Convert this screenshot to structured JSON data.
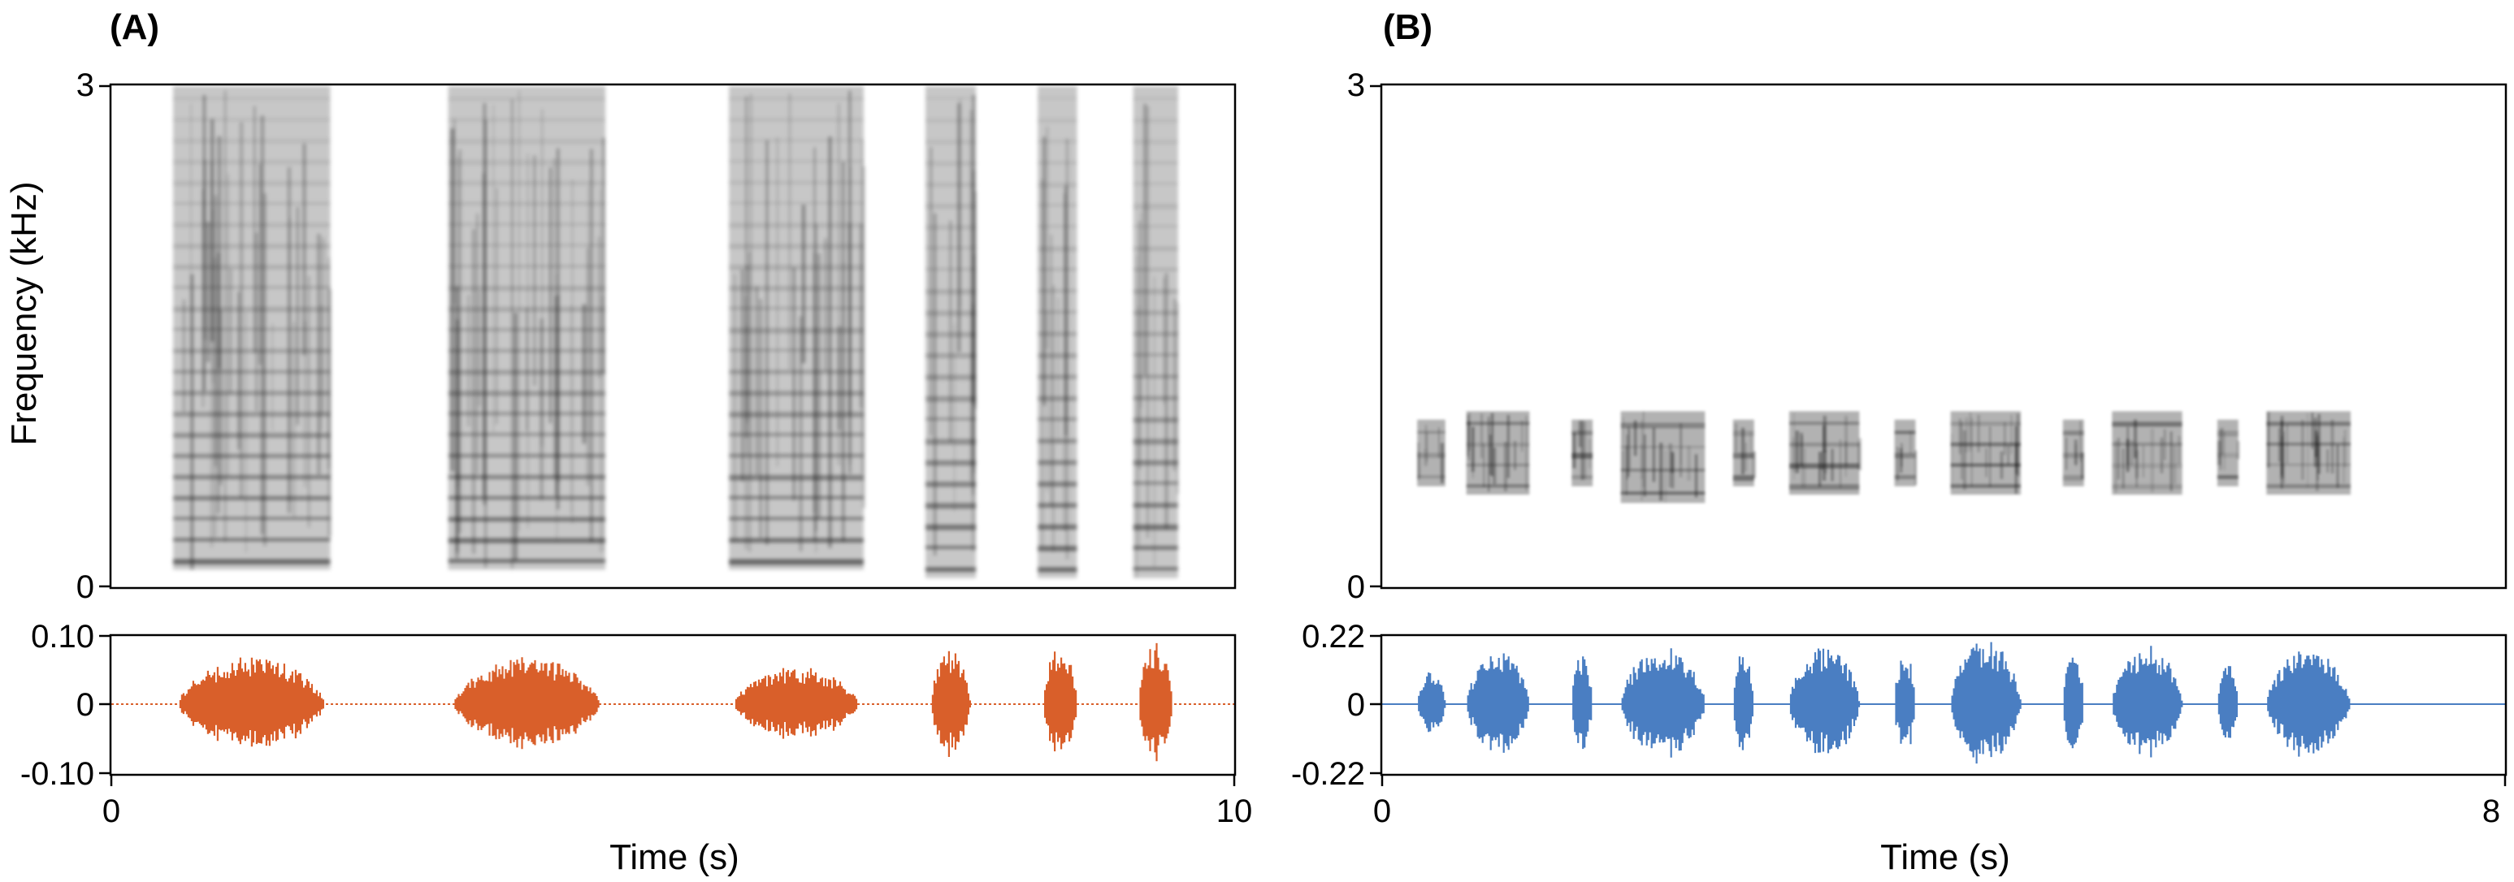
{
  "chart_data": [
    {
      "panel": "(A)",
      "spectrogram": {
        "type": "heatmap",
        "ylabel": "Frequency (kHz)",
        "ylim": [
          0,
          3
        ],
        "yticks": [
          "0",
          "3"
        ],
        "xlim": [
          0,
          10
        ],
        "segments": [
          {
            "start": 0.55,
            "end": 1.95,
            "fmin": 0.1,
            "fmax": 3.0
          },
          {
            "start": 3.0,
            "end": 4.4,
            "fmin": 0.1,
            "fmax": 3.0
          },
          {
            "start": 5.5,
            "end": 6.7,
            "fmin": 0.1,
            "fmax": 3.0
          },
          {
            "start": 7.25,
            "end": 7.7,
            "fmin": 0.05,
            "fmax": 3.0
          },
          {
            "start": 8.25,
            "end": 8.6,
            "fmin": 0.05,
            "fmax": 3.0
          },
          {
            "start": 9.1,
            "end": 9.5,
            "fmin": 0.05,
            "fmax": 3.0
          }
        ],
        "colormap": "grayscale"
      },
      "waveform": {
        "type": "area",
        "ylim": [
          -0.1,
          0.1
        ],
        "yticks": [
          "0.10",
          "0",
          "-0.10"
        ],
        "color": "#D95F2A",
        "bursts": [
          {
            "start": 0.6,
            "end": 1.9,
            "amplitude": 0.07
          },
          {
            "start": 3.05,
            "end": 4.35,
            "amplitude": 0.07
          },
          {
            "start": 5.55,
            "end": 6.65,
            "amplitude": 0.055
          },
          {
            "start": 7.3,
            "end": 7.65,
            "amplitude": 0.08
          },
          {
            "start": 8.3,
            "end": 8.6,
            "amplitude": 0.09
          },
          {
            "start": 9.15,
            "end": 9.45,
            "amplitude": 0.09
          }
        ]
      },
      "xaxis": {
        "xlabel": "Time (s)",
        "xlim": [
          0,
          10
        ],
        "xticks": [
          "0",
          "10"
        ]
      }
    },
    {
      "panel": "(B)",
      "spectrogram": {
        "type": "heatmap",
        "ylim": [
          0,
          3
        ],
        "yticks": [
          "0",
          "3"
        ],
        "xlim": [
          0,
          8
        ],
        "segments": [
          {
            "start": 0.25,
            "end": 0.45,
            "fmin": 0.6,
            "fmax": 1.0
          },
          {
            "start": 0.6,
            "end": 1.05,
            "fmin": 0.55,
            "fmax": 1.05
          },
          {
            "start": 1.35,
            "end": 1.5,
            "fmin": 0.6,
            "fmax": 1.0
          },
          {
            "start": 1.7,
            "end": 2.3,
            "fmin": 0.5,
            "fmax": 1.05
          },
          {
            "start": 2.5,
            "end": 2.65,
            "fmin": 0.6,
            "fmax": 1.0
          },
          {
            "start": 2.9,
            "end": 3.4,
            "fmin": 0.55,
            "fmax": 1.05
          },
          {
            "start": 3.65,
            "end": 3.8,
            "fmin": 0.6,
            "fmax": 1.0
          },
          {
            "start": 4.05,
            "end": 4.55,
            "fmin": 0.55,
            "fmax": 1.05
          },
          {
            "start": 4.85,
            "end": 5.0,
            "fmin": 0.6,
            "fmax": 1.0
          },
          {
            "start": 5.2,
            "end": 5.7,
            "fmin": 0.55,
            "fmax": 1.05
          },
          {
            "start": 5.95,
            "end": 6.1,
            "fmin": 0.6,
            "fmax": 1.0
          },
          {
            "start": 6.3,
            "end": 6.9,
            "fmin": 0.55,
            "fmax": 1.05
          }
        ],
        "colormap": "grayscale"
      },
      "waveform": {
        "type": "area",
        "ylim": [
          -0.22,
          0.22
        ],
        "yticks": [
          "0.22",
          "0",
          "-0.22"
        ],
        "color": "#4A7EC2",
        "bursts": [
          {
            "start": 0.25,
            "end": 0.45,
            "amplitude": 0.12
          },
          {
            "start": 0.6,
            "end": 1.05,
            "amplitude": 0.17
          },
          {
            "start": 1.35,
            "end": 1.5,
            "amplitude": 0.16
          },
          {
            "start": 1.7,
            "end": 2.3,
            "amplitude": 0.19
          },
          {
            "start": 2.5,
            "end": 2.65,
            "amplitude": 0.18
          },
          {
            "start": 2.9,
            "end": 3.4,
            "amplitude": 0.19
          },
          {
            "start": 3.65,
            "end": 3.8,
            "amplitude": 0.17
          },
          {
            "start": 4.05,
            "end": 4.55,
            "amplitude": 0.21
          },
          {
            "start": 4.85,
            "end": 5.0,
            "amplitude": 0.17
          },
          {
            "start": 5.2,
            "end": 5.7,
            "amplitude": 0.19
          },
          {
            "start": 5.95,
            "end": 6.1,
            "amplitude": 0.14
          },
          {
            "start": 6.3,
            "end": 6.9,
            "amplitude": 0.18
          }
        ]
      },
      "xaxis": {
        "xlabel": "Time (s)",
        "xlim": [
          0,
          8
        ],
        "xticks": [
          "0",
          "8"
        ]
      }
    }
  ]
}
